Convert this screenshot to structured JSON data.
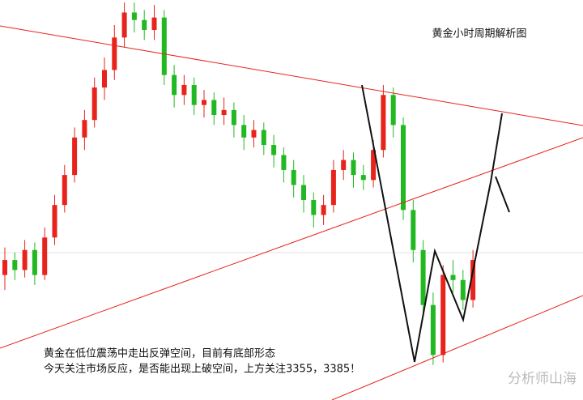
{
  "chart_data": {
    "type": "candlestick",
    "title": "黄金小时周期解析图",
    "annotations": [
      "黄金在低位震荡中走出反弹空间，目前有底部形态",
      "今天关注市场反应，是否能出现上破空间，上方关注3355，3385！"
    ],
    "watermark": "分析师山海",
    "ylim": [
      3240,
      3400
    ],
    "up_color": "#e8231c",
    "down_color": "#22b822",
    "open": [
      3290,
      3296,
      3292,
      3300,
      3290,
      3305,
      3318,
      3330,
      3345,
      3352,
      3365,
      3372,
      3385,
      3395,
      3392,
      3388,
      3393,
      3370,
      3362,
      3366,
      3358,
      3360,
      3354,
      3356,
      3350,
      3345,
      3348,
      3342,
      3338,
      3332,
      3326,
      3320,
      3314,
      3318,
      3332,
      3336,
      3330,
      3328,
      3340,
      3362,
      3350,
      3316,
      3300,
      3278,
      3258,
      3290,
      3288,
      3280
    ],
    "high": [
      3301,
      3299,
      3304,
      3303,
      3309,
      3322,
      3334,
      3349,
      3356,
      3369,
      3377,
      3390,
      3399,
      3399,
      3396,
      3398,
      3396,
      3374,
      3370,
      3369,
      3364,
      3363,
      3361,
      3359,
      3354,
      3352,
      3351,
      3346,
      3341,
      3336,
      3330,
      3323,
      3322,
      3336,
      3340,
      3339,
      3334,
      3344,
      3366,
      3365,
      3353,
      3320,
      3304,
      3283,
      3294,
      3296,
      3292,
      3300
    ],
    "low": [
      3284,
      3288,
      3289,
      3286,
      3288,
      3302,
      3315,
      3327,
      3340,
      3349,
      3360,
      3368,
      3381,
      3387,
      3384,
      3384,
      3366,
      3357,
      3358,
      3354,
      3353,
      3350,
      3350,
      3345,
      3340,
      3341,
      3338,
      3333,
      3327,
      3321,
      3315,
      3309,
      3310,
      3315,
      3328,
      3325,
      3324,
      3325,
      3337,
      3345,
      3312,
      3295,
      3273,
      3254,
      3255,
      3283,
      3276,
      3277
    ],
    "close": [
      3296,
      3292,
      3300,
      3290,
      3305,
      3318,
      3330,
      3345,
      3352,
      3365,
      3372,
      3385,
      3395,
      3392,
      3388,
      3393,
      3370,
      3362,
      3366,
      3358,
      3360,
      3354,
      3356,
      3350,
      3345,
      3348,
      3342,
      3338,
      3332,
      3326,
      3320,
      3314,
      3318,
      3332,
      3336,
      3330,
      3328,
      3340,
      3362,
      3350,
      3316,
      3300,
      3278,
      3258,
      3290,
      3288,
      3280,
      3296
    ]
  }
}
